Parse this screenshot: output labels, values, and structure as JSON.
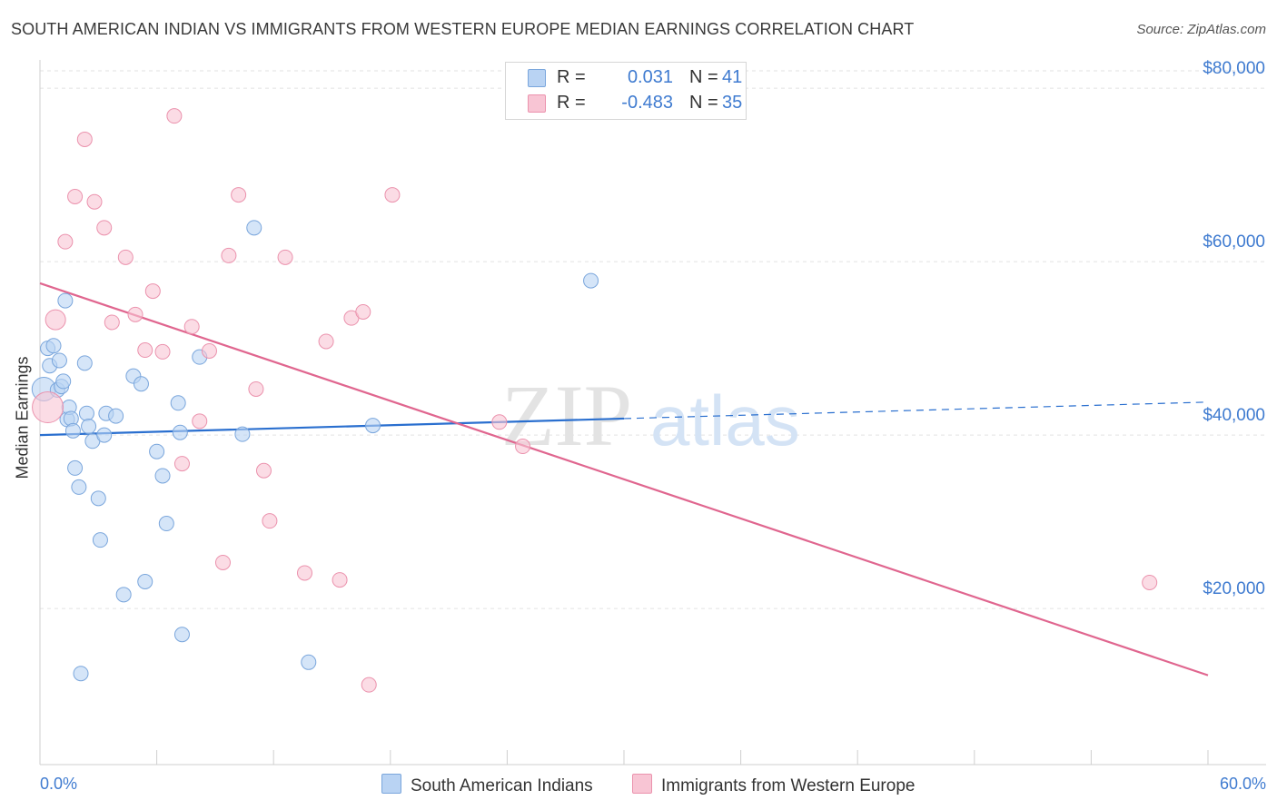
{
  "title": "SOUTH AMERICAN INDIAN VS IMMIGRANTS FROM WESTERN EUROPE MEDIAN EARNINGS CORRELATION CHART",
  "source": "Source: ZipAtlas.com",
  "watermark": {
    "zip": "ZIP",
    "atlas": "atlas"
  },
  "colors": {
    "blue_fill": "#b9d3f3",
    "blue_stroke": "#7aa6dc",
    "blue_line": "#2a6fcf",
    "pink_fill": "#f8c5d4",
    "pink_stroke": "#eb92ad",
    "pink_line": "#e0668f",
    "axis_text": "#3f7bd0",
    "grid": "#e2e2e2"
  },
  "legend": {
    "rows": [
      {
        "r_label": "R =",
        "r_value": "0.031",
        "n_label": "N =",
        "n_value": "41"
      },
      {
        "r_label": "R =",
        "r_value": "-0.483",
        "n_label": "N =",
        "n_value": "35"
      }
    ]
  },
  "chart_data": {
    "type": "scatter",
    "title": "SOUTH AMERICAN INDIAN VS IMMIGRANTS FROM WESTERN EUROPE MEDIAN EARNINGS CORRELATION CHART",
    "xlabel": "",
    "ylabel": "Median Earnings",
    "xlim": [
      0,
      60
    ],
    "ylim": [
      2000,
      82000
    ],
    "x_tick_labels": {
      "left": "0.0%",
      "right": "60.0%"
    },
    "y_ticks": [
      {
        "value": 20000,
        "label": "$20,000"
      },
      {
        "value": 40000,
        "label": "$40,000"
      },
      {
        "value": 60000,
        "label": "$60,000"
      },
      {
        "value": 80000,
        "label": "$80,000"
      }
    ],
    "series": [
      {
        "name": "South American Indians",
        "color": "blue",
        "r": 0.031,
        "n": 41,
        "trend": {
          "x0": 0,
          "y0": 40000,
          "x1": 30,
          "y1": 41900,
          "dash_to_x": 60,
          "dash_to_y": 43800
        },
        "points": [
          {
            "x": 0.2,
            "y": 45300,
            "s": "L"
          },
          {
            "x": 0.4,
            "y": 50000
          },
          {
            "x": 0.5,
            "y": 48000
          },
          {
            "x": 0.7,
            "y": 50300
          },
          {
            "x": 0.9,
            "y": 45200
          },
          {
            "x": 1.0,
            "y": 48600
          },
          {
            "x": 1.1,
            "y": 45600
          },
          {
            "x": 1.2,
            "y": 46200
          },
          {
            "x": 1.3,
            "y": 55500
          },
          {
            "x": 1.4,
            "y": 41800
          },
          {
            "x": 1.5,
            "y": 43200
          },
          {
            "x": 1.6,
            "y": 41900
          },
          {
            "x": 1.7,
            "y": 40500
          },
          {
            "x": 1.8,
            "y": 36200
          },
          {
            "x": 2.0,
            "y": 34000
          },
          {
            "x": 2.1,
            "y": 12500
          },
          {
            "x": 2.3,
            "y": 48300
          },
          {
            "x": 2.4,
            "y": 42500
          },
          {
            "x": 2.5,
            "y": 41000
          },
          {
            "x": 2.7,
            "y": 39300
          },
          {
            "x": 3.0,
            "y": 32700
          },
          {
            "x": 3.1,
            "y": 27900
          },
          {
            "x": 3.3,
            "y": 40000
          },
          {
            "x": 3.4,
            "y": 42500
          },
          {
            "x": 3.9,
            "y": 42200
          },
          {
            "x": 4.3,
            "y": 21600
          },
          {
            "x": 4.8,
            "y": 46800
          },
          {
            "x": 5.2,
            "y": 45900
          },
          {
            "x": 5.4,
            "y": 23100
          },
          {
            "x": 6.0,
            "y": 38100
          },
          {
            "x": 6.3,
            "y": 35300
          },
          {
            "x": 6.5,
            "y": 29800
          },
          {
            "x": 7.1,
            "y": 43700
          },
          {
            "x": 7.2,
            "y": 40300
          },
          {
            "x": 7.3,
            "y": 17000
          },
          {
            "x": 8.2,
            "y": 49000
          },
          {
            "x": 10.4,
            "y": 40100
          },
          {
            "x": 11.0,
            "y": 63900
          },
          {
            "x": 13.8,
            "y": 13800
          },
          {
            "x": 17.1,
            "y": 41100
          },
          {
            "x": 28.3,
            "y": 57800
          }
        ]
      },
      {
        "name": "Immigrants from Western Europe",
        "color": "pink",
        "r": -0.483,
        "n": 35,
        "trend": {
          "x0": 0,
          "y0": 57500,
          "x1": 60,
          "y1": 12300
        },
        "points": [
          {
            "x": 0.4,
            "y": 43200,
            "s": "XL"
          },
          {
            "x": 0.8,
            "y": 53300,
            "s": "M"
          },
          {
            "x": 1.3,
            "y": 62300
          },
          {
            "x": 1.8,
            "y": 67500
          },
          {
            "x": 2.3,
            "y": 74100
          },
          {
            "x": 2.8,
            "y": 66900
          },
          {
            "x": 3.3,
            "y": 63900
          },
          {
            "x": 3.7,
            "y": 53000
          },
          {
            "x": 4.4,
            "y": 60500
          },
          {
            "x": 4.9,
            "y": 53900
          },
          {
            "x": 5.4,
            "y": 49800
          },
          {
            "x": 5.8,
            "y": 56600
          },
          {
            "x": 6.3,
            "y": 49600
          },
          {
            "x": 6.9,
            "y": 76800
          },
          {
            "x": 7.3,
            "y": 36700
          },
          {
            "x": 7.8,
            "y": 52500
          },
          {
            "x": 8.2,
            "y": 41600
          },
          {
            "x": 8.7,
            "y": 49700
          },
          {
            "x": 9.4,
            "y": 25300
          },
          {
            "x": 9.7,
            "y": 60700
          },
          {
            "x": 10.2,
            "y": 67700
          },
          {
            "x": 11.1,
            "y": 45300
          },
          {
            "x": 11.5,
            "y": 35900
          },
          {
            "x": 11.8,
            "y": 30100
          },
          {
            "x": 12.6,
            "y": 60500
          },
          {
            "x": 13.6,
            "y": 24100
          },
          {
            "x": 14.7,
            "y": 50800
          },
          {
            "x": 15.4,
            "y": 23300
          },
          {
            "x": 16.0,
            "y": 53500
          },
          {
            "x": 16.6,
            "y": 54200
          },
          {
            "x": 16.9,
            "y": 11200
          },
          {
            "x": 18.1,
            "y": 67700
          },
          {
            "x": 23.6,
            "y": 41500
          },
          {
            "x": 24.8,
            "y": 38700
          },
          {
            "x": 57.0,
            "y": 23000
          }
        ]
      }
    ]
  }
}
